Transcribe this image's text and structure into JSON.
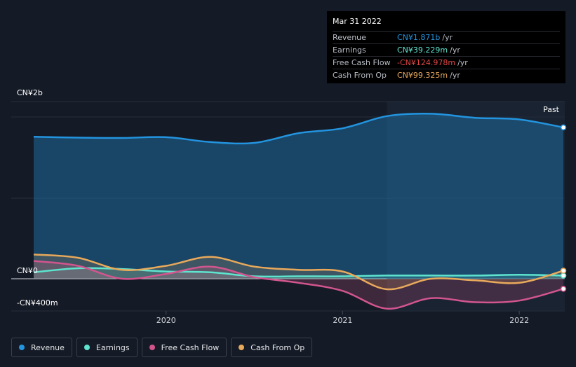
{
  "chart_data": {
    "type": "area",
    "y_unit": "CN¥",
    "ylim": [
      -400,
      2000
    ],
    "xlim": [
      2019.25,
      2022.25
    ],
    "y_axis_labels": [
      {
        "value": 2000,
        "label": "CN¥2b"
      },
      {
        "value": 0,
        "label": "CN¥0"
      },
      {
        "value": -400,
        "label": "-CN¥400m"
      }
    ],
    "x_ticks": [
      {
        "value": 2020,
        "label": "2020"
      },
      {
        "value": 2021,
        "label": "2021"
      },
      {
        "value": 2022,
        "label": "2022"
      }
    ],
    "past_start": 2021.25,
    "past_label": "Past",
    "series": [
      {
        "name": "Revenue",
        "color": "#2394df",
        "x": [
          2019.25,
          2019.5,
          2019.75,
          2020.0,
          2020.25,
          2020.5,
          2020.75,
          2021.0,
          2021.25,
          2021.5,
          2021.75,
          2022.0,
          2022.25
        ],
        "y": [
          1755,
          1745,
          1740,
          1750,
          1690,
          1680,
          1800,
          1860,
          2010,
          2040,
          1990,
          1970,
          1871
        ]
      },
      {
        "name": "Earnings",
        "color": "#5ee4cf",
        "x": [
          2019.25,
          2019.5,
          2019.75,
          2020.0,
          2020.25,
          2020.5,
          2020.75,
          2021.0,
          2021.25,
          2021.5,
          2021.75,
          2022.0,
          2022.25
        ],
        "y": [
          80,
          130,
          120,
          90,
          80,
          30,
          30,
          30,
          40,
          40,
          40,
          50,
          39.229
        ]
      },
      {
        "name": "Free Cash Flow",
        "color": "#d2558f",
        "x": [
          2019.25,
          2019.5,
          2019.75,
          2020.0,
          2020.25,
          2020.5,
          2020.75,
          2021.0,
          2021.25,
          2021.5,
          2021.75,
          2022.0,
          2022.25
        ],
        "y": [
          220,
          160,
          0,
          60,
          150,
          20,
          -50,
          -150,
          -370,
          -240,
          -290,
          -270,
          -124.978
        ]
      },
      {
        "name": "Cash From Op",
        "color": "#e8a95b",
        "x": [
          2019.25,
          2019.5,
          2019.75,
          2020.0,
          2020.25,
          2020.5,
          2020.75,
          2021.0,
          2021.25,
          2021.5,
          2021.75,
          2022.0,
          2022.25
        ],
        "y": [
          300,
          260,
          110,
          160,
          270,
          150,
          110,
          90,
          -130,
          0,
          -20,
          -50,
          99.325
        ]
      }
    ],
    "tooltip": {
      "date": "Mar 31 2022",
      "rows": [
        {
          "label": "Revenue",
          "value": "CN¥1.871b",
          "unit": "/yr",
          "color": "#2394df"
        },
        {
          "label": "Earnings",
          "value": "CN¥39.229m",
          "unit": "/yr",
          "color": "#5ee4cf"
        },
        {
          "label": "Free Cash Flow",
          "value": "-CN¥124.978m",
          "unit": "/yr",
          "color": "#e04646"
        },
        {
          "label": "Cash From Op",
          "value": "CN¥99.325m",
          "unit": "/yr",
          "color": "#e8a95b"
        }
      ]
    },
    "legend_placement": "bottom-left"
  }
}
